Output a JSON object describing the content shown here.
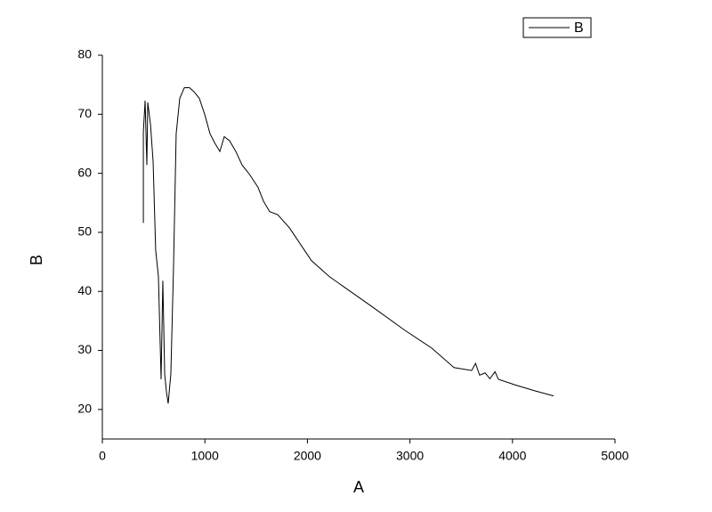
{
  "chart_data": {
    "type": "line",
    "x_label": "A",
    "y_label": "B",
    "x": [
      400,
      400,
      417,
      434,
      443,
      470,
      495,
      520,
      547,
      573,
      590,
      608,
      625,
      642,
      668,
      694,
      720,
      755,
      800,
      850,
      894,
      946,
      998,
      1050,
      1094,
      1146,
      1189,
      1241,
      1302,
      1363,
      1432,
      1519,
      1571,
      1632,
      1710,
      1823,
      1997,
      2040,
      2214,
      2361,
      2648,
      2951,
      3212,
      3429,
      3602,
      3640,
      3680,
      3733,
      3780,
      3830,
      3863,
      4036,
      4210,
      4401
    ],
    "series": [
      {
        "name": "B",
        "color": "#000000",
        "values": [
          51.6,
          67,
          72.3,
          61.4,
          72,
          68.2,
          62,
          47,
          42.5,
          25.1,
          41.8,
          26,
          23,
          21,
          26,
          44,
          66.7,
          72.7,
          74.5,
          74.5,
          73.8,
          72.7,
          70,
          66.7,
          65.2,
          63.7,
          66.2,
          65.5,
          63.7,
          61.4,
          59.9,
          57.6,
          55.3,
          53.5,
          53,
          50.8,
          46.3,
          45.2,
          42.5,
          40.7,
          37.2,
          33.4,
          30.4,
          27.1,
          26.6,
          27.8,
          25.8,
          26.2,
          25.2,
          26.4,
          25.1,
          24.1,
          23.2,
          22.3
        ]
      }
    ],
    "xlim": [
      0,
      5000
    ],
    "xticks": [
      0,
      1000,
      2000,
      3000,
      4000,
      5000
    ],
    "ylim": [
      15,
      80
    ],
    "yticks": [
      20,
      30,
      40,
      50,
      60,
      70,
      80
    ],
    "legend": "top-right"
  }
}
